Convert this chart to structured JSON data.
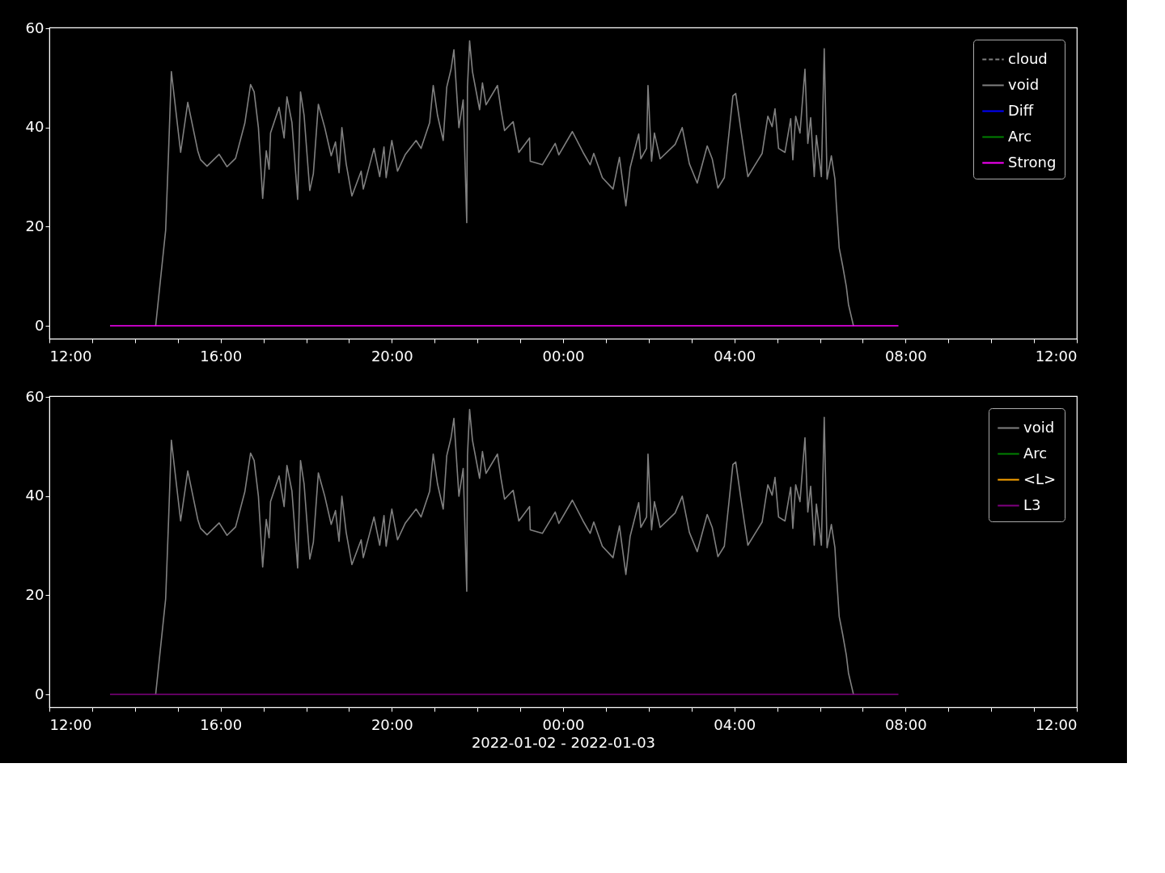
{
  "chart_data": [
    {
      "type": "line",
      "xlim": [
        "2022-01-02T12:00",
        "2022-01-03T12:00"
      ],
      "ylim": [
        -2.6,
        60.2
      ],
      "yticks": [
        0,
        20,
        40,
        60
      ],
      "xticks": [
        {
          "value": "2022-01-02T12:00",
          "label": "12:00"
        },
        {
          "value": "2022-01-02T13:00",
          "label": null
        },
        {
          "value": "2022-01-02T14:00",
          "label": null
        },
        {
          "value": "2022-01-02T15:00",
          "label": null
        },
        {
          "value": "2022-01-02T16:00",
          "label": "16:00"
        },
        {
          "value": "2022-01-02T17:00",
          "label": null
        },
        {
          "value": "2022-01-02T18:00",
          "label": null
        },
        {
          "value": "2022-01-02T19:00",
          "label": null
        },
        {
          "value": "2022-01-02T20:00",
          "label": "20:00"
        },
        {
          "value": "2022-01-02T21:00",
          "label": null
        },
        {
          "value": "2022-01-02T22:00",
          "label": null
        },
        {
          "value": "2022-01-02T23:00",
          "label": null
        },
        {
          "value": "2022-01-03T00:00",
          "label": "00:00"
        },
        {
          "value": "2022-01-03T01:00",
          "label": null
        },
        {
          "value": "2022-01-03T02:00",
          "label": null
        },
        {
          "value": "2022-01-03T03:00",
          "label": null
        },
        {
          "value": "2022-01-03T04:00",
          "label": "04:00"
        },
        {
          "value": "2022-01-03T05:00",
          "label": null
        },
        {
          "value": "2022-01-03T06:00",
          "label": null
        },
        {
          "value": "2022-01-03T07:00",
          "label": null
        },
        {
          "value": "2022-01-03T08:00",
          "label": "08:00"
        },
        {
          "value": "2022-01-03T09:00",
          "label": null
        },
        {
          "value": "2022-01-03T10:00",
          "label": null
        },
        {
          "value": "2022-01-03T11:00",
          "label": null
        },
        {
          "value": "2022-01-03T12:00",
          "label": "12:00"
        }
      ],
      "grid": false,
      "legend": "top right",
      "line_style": "solid",
      "series": [
        {
          "name": "cloud",
          "color": "#808080",
          "line_style": "dashed"
        },
        {
          "name": "void",
          "color": "#808080",
          "x": [
            "2022-01-02T14:29",
            "2022-01-02T14:43",
            "2022-01-02T14:47",
            "2022-01-02T14:51",
            "2022-01-02T15:04",
            "2022-01-02T15:14",
            "2022-01-02T15:28",
            "2022-01-02T15:32",
            "2022-01-02T15:41",
            "2022-01-02T15:58",
            "2022-01-02T16:09",
            "2022-01-02T16:21",
            "2022-01-02T16:34",
            "2022-01-02T16:42",
            "2022-01-02T16:47",
            "2022-01-02T16:53",
            "2022-01-02T16:59",
            "2022-01-02T17:04",
            "2022-01-02T17:08",
            "2022-01-02T17:10",
            "2022-01-02T17:22",
            "2022-01-02T17:29",
            "2022-01-02T17:33",
            "2022-01-02T17:40",
            "2022-01-02T17:48",
            "2022-01-02T17:52",
            "2022-01-02T17:57",
            "2022-01-02T18:05",
            "2022-01-02T18:10",
            "2022-01-02T18:17",
            "2022-01-02T18:26",
            "2022-01-02T18:35",
            "2022-01-02T18:41",
            "2022-01-02T18:46",
            "2022-01-02T18:50",
            "2022-01-02T18:56",
            "2022-01-02T19:04",
            "2022-01-02T19:17",
            "2022-01-02T19:20",
            "2022-01-02T19:35",
            "2022-01-02T19:43",
            "2022-01-02T19:49",
            "2022-01-02T19:52",
            "2022-01-02T20:00",
            "2022-01-02T20:08",
            "2022-01-02T20:19",
            "2022-01-02T20:34",
            "2022-01-02T20:41",
            "2022-01-02T20:53",
            "2022-01-02T20:58",
            "2022-01-02T21:04",
            "2022-01-02T21:12",
            "2022-01-02T21:17",
            "2022-01-02T21:23",
            "2022-01-02T21:27",
            "2022-01-02T21:34",
            "2022-01-02T21:40",
            "2022-01-02T21:45",
            "2022-01-02T21:46",
            "2022-01-02T21:49",
            "2022-01-02T21:53",
            "2022-01-02T22:03",
            "2022-01-02T22:07",
            "2022-01-02T22:12",
            "2022-01-02T22:28",
            "2022-01-02T22:33",
            "2022-01-02T22:38",
            "2022-01-02T22:50",
            "2022-01-02T22:58",
            "2022-01-02T23:13",
            "2022-01-02T23:14",
            "2022-01-02T23:31",
            "2022-01-02T23:49",
            "2022-01-02T23:54",
            "2022-01-03T00:13",
            "2022-01-03T00:28",
            "2022-01-03T00:38",
            "2022-01-03T00:43",
            "2022-01-03T00:55",
            "2022-01-03T01:10",
            "2022-01-03T01:19",
            "2022-01-03T01:28",
            "2022-01-03T01:34",
            "2022-01-03T01:46",
            "2022-01-03T01:49",
            "2022-01-03T01:57",
            "2022-01-03T01:59",
            "2022-01-03T02:04",
            "2022-01-03T02:08",
            "2022-01-03T02:16",
            "2022-01-03T02:37",
            "2022-01-03T02:47",
            "2022-01-03T02:57",
            "2022-01-03T03:08",
            "2022-01-03T03:22",
            "2022-01-03T03:29",
            "2022-01-03T03:37",
            "2022-01-03T03:46",
            "2022-01-03T03:58",
            "2022-01-03T04:02",
            "2022-01-03T04:09",
            "2022-01-03T04:14",
            "2022-01-03T04:19",
            "2022-01-03T04:30",
            "2022-01-03T04:39",
            "2022-01-03T04:47",
            "2022-01-03T04:53",
            "2022-01-03T04:57",
            "2022-01-03T05:02",
            "2022-01-03T05:11",
            "2022-01-03T05:19",
            "2022-01-03T05:22",
            "2022-01-03T05:26",
            "2022-01-03T05:32",
            "2022-01-03T05:39",
            "2022-01-03T05:43",
            "2022-01-03T05:47",
            "2022-01-03T05:52",
            "2022-01-03T05:55",
            "2022-01-03T06:02",
            "2022-01-03T06:06",
            "2022-01-03T06:10",
            "2022-01-03T06:16",
            "2022-01-03T06:21",
            "2022-01-03T06:23",
            "2022-01-03T06:27",
            "2022-01-03T06:32",
            "2022-01-03T06:37",
            "2022-01-03T06:40",
            "2022-01-03T06:47"
          ],
          "values": [
            0,
            19.3,
            34.8,
            51.3,
            35.0,
            45.1,
            35.3,
            33.5,
            32.2,
            34.6,
            32.1,
            33.8,
            40.9,
            48.7,
            47.2,
            40.0,
            25.7,
            35.3,
            31.6,
            38.9,
            44.1,
            37.9,
            46.2,
            41.0,
            25.5,
            47.2,
            42.5,
            27.3,
            30.7,
            44.7,
            40.0,
            34.3,
            37.1,
            30.9,
            40.0,
            32.7,
            26.2,
            31.2,
            27.6,
            35.8,
            30.1,
            36.1,
            29.9,
            37.4,
            31.2,
            34.6,
            37.4,
            35.8,
            41.0,
            48.5,
            42.5,
            37.4,
            48.2,
            51.8,
            55.7,
            40.0,
            45.6,
            20.8,
            48.2,
            57.5,
            51.3,
            43.6,
            49.0,
            44.6,
            48.5,
            43.6,
            39.4,
            41.2,
            35.0,
            37.9,
            33.2,
            32.5,
            36.8,
            34.5,
            39.2,
            35.0,
            32.5,
            34.8,
            29.9,
            27.6,
            34.0,
            24.2,
            31.9,
            38.7,
            33.7,
            35.8,
            48.5,
            33.2,
            38.9,
            33.7,
            36.6,
            40.0,
            32.7,
            28.8,
            36.3,
            33.7,
            27.8,
            29.9,
            46.4,
            46.9,
            39.7,
            34.8,
            30.1,
            32.7,
            34.8,
            42.3,
            40.2,
            43.8,
            35.8,
            35.0,
            41.8,
            33.5,
            42.3,
            38.9,
            51.8,
            36.8,
            42.0,
            30.1,
            38.4,
            30.1,
            55.9,
            29.6,
            34.3,
            29.6,
            24.4,
            15.7,
            12.0,
            7.9,
            4.3,
            0
          ]
        },
        {
          "name": "Diff",
          "color": "#0000ff"
        },
        {
          "name": "Arc",
          "color": "#008000"
        },
        {
          "name": "Strong",
          "color": "#ff00ff",
          "x": [
            "2022-01-02T13:25",
            "2022-01-03T07:50"
          ],
          "values": [
            0,
            0
          ]
        }
      ]
    },
    {
      "type": "line",
      "xlim": [
        "2022-01-02T12:00",
        "2022-01-03T12:00"
      ],
      "ylim": [
        -2.6,
        60.2
      ],
      "yticks": [
        0,
        20,
        40,
        60
      ],
      "xlabel": "2022-01-02 - 2022-01-03",
      "xticks": [
        {
          "value": "2022-01-02T12:00",
          "label": "12:00"
        },
        {
          "value": "2022-01-02T13:00",
          "label": null
        },
        {
          "value": "2022-01-02T14:00",
          "label": null
        },
        {
          "value": "2022-01-02T15:00",
          "label": null
        },
        {
          "value": "2022-01-02T16:00",
          "label": "16:00"
        },
        {
          "value": "2022-01-02T17:00",
          "label": null
        },
        {
          "value": "2022-01-02T18:00",
          "label": null
        },
        {
          "value": "2022-01-02T19:00",
          "label": null
        },
        {
          "value": "2022-01-02T20:00",
          "label": "20:00"
        },
        {
          "value": "2022-01-02T21:00",
          "label": null
        },
        {
          "value": "2022-01-02T22:00",
          "label": null
        },
        {
          "value": "2022-01-02T23:00",
          "label": null
        },
        {
          "value": "2022-01-03T00:00",
          "label": "00:00"
        },
        {
          "value": "2022-01-03T01:00",
          "label": null
        },
        {
          "value": "2022-01-03T02:00",
          "label": null
        },
        {
          "value": "2022-01-03T03:00",
          "label": null
        },
        {
          "value": "2022-01-03T04:00",
          "label": "04:00"
        },
        {
          "value": "2022-01-03T05:00",
          "label": null
        },
        {
          "value": "2022-01-03T06:00",
          "label": null
        },
        {
          "value": "2022-01-03T07:00",
          "label": null
        },
        {
          "value": "2022-01-03T08:00",
          "label": "08:00"
        },
        {
          "value": "2022-01-03T09:00",
          "label": null
        },
        {
          "value": "2022-01-03T10:00",
          "label": null
        },
        {
          "value": "2022-01-03T11:00",
          "label": null
        },
        {
          "value": "2022-01-03T12:00",
          "label": "12:00"
        }
      ],
      "grid": false,
      "legend": "top right",
      "line_style": "solid",
      "series": [
        {
          "name": "void",
          "color": "#808080",
          "x": [
            "2022-01-02T14:29",
            "2022-01-02T14:43",
            "2022-01-02T14:47",
            "2022-01-02T14:51",
            "2022-01-02T15:04",
            "2022-01-02T15:14",
            "2022-01-02T15:28",
            "2022-01-02T15:32",
            "2022-01-02T15:41",
            "2022-01-02T15:58",
            "2022-01-02T16:09",
            "2022-01-02T16:21",
            "2022-01-02T16:34",
            "2022-01-02T16:42",
            "2022-01-02T16:47",
            "2022-01-02T16:53",
            "2022-01-02T16:59",
            "2022-01-02T17:04",
            "2022-01-02T17:08",
            "2022-01-02T17:10",
            "2022-01-02T17:22",
            "2022-01-02T17:29",
            "2022-01-02T17:33",
            "2022-01-02T17:40",
            "2022-01-02T17:48",
            "2022-01-02T17:52",
            "2022-01-02T17:57",
            "2022-01-02T18:05",
            "2022-01-02T18:10",
            "2022-01-02T18:17",
            "2022-01-02T18:26",
            "2022-01-02T18:35",
            "2022-01-02T18:41",
            "2022-01-02T18:46",
            "2022-01-02T18:50",
            "2022-01-02T18:56",
            "2022-01-02T19:04",
            "2022-01-02T19:17",
            "2022-01-02T19:20",
            "2022-01-02T19:35",
            "2022-01-02T19:43",
            "2022-01-02T19:49",
            "2022-01-02T19:52",
            "2022-01-02T20:00",
            "2022-01-02T20:08",
            "2022-01-02T20:19",
            "2022-01-02T20:34",
            "2022-01-02T20:41",
            "2022-01-02T20:53",
            "2022-01-02T20:58",
            "2022-01-02T21:04",
            "2022-01-02T21:12",
            "2022-01-02T21:17",
            "2022-01-02T21:23",
            "2022-01-02T21:27",
            "2022-01-02T21:34",
            "2022-01-02T21:40",
            "2022-01-02T21:45",
            "2022-01-02T21:46",
            "2022-01-02T21:49",
            "2022-01-02T21:53",
            "2022-01-02T22:03",
            "2022-01-02T22:07",
            "2022-01-02T22:12",
            "2022-01-02T22:28",
            "2022-01-02T22:33",
            "2022-01-02T22:38",
            "2022-01-02T22:50",
            "2022-01-02T22:58",
            "2022-01-02T23:13",
            "2022-01-02T23:14",
            "2022-01-02T23:31",
            "2022-01-02T23:49",
            "2022-01-02T23:54",
            "2022-01-03T00:13",
            "2022-01-03T00:28",
            "2022-01-03T00:38",
            "2022-01-03T00:43",
            "2022-01-03T00:55",
            "2022-01-03T01:10",
            "2022-01-03T01:19",
            "2022-01-03T01:28",
            "2022-01-03T01:34",
            "2022-01-03T01:46",
            "2022-01-03T01:49",
            "2022-01-03T01:57",
            "2022-01-03T01:59",
            "2022-01-03T02:04",
            "2022-01-03T02:08",
            "2022-01-03T02:16",
            "2022-01-03T02:37",
            "2022-01-03T02:47",
            "2022-01-03T02:57",
            "2022-01-03T03:08",
            "2022-01-03T03:22",
            "2022-01-03T03:29",
            "2022-01-03T03:37",
            "2022-01-03T03:46",
            "2022-01-03T03:58",
            "2022-01-03T04:02",
            "2022-01-03T04:09",
            "2022-01-03T04:14",
            "2022-01-03T04:19",
            "2022-01-03T04:30",
            "2022-01-03T04:39",
            "2022-01-03T04:47",
            "2022-01-03T04:53",
            "2022-01-03T04:57",
            "2022-01-03T05:02",
            "2022-01-03T05:11",
            "2022-01-03T05:19",
            "2022-01-03T05:22",
            "2022-01-03T05:26",
            "2022-01-03T05:32",
            "2022-01-03T05:39",
            "2022-01-03T05:43",
            "2022-01-03T05:47",
            "2022-01-03T05:52",
            "2022-01-03T05:55",
            "2022-01-03T06:02",
            "2022-01-03T06:06",
            "2022-01-03T06:10",
            "2022-01-03T06:16",
            "2022-01-03T06:21",
            "2022-01-03T06:23",
            "2022-01-03T06:27",
            "2022-01-03T06:32",
            "2022-01-03T06:37",
            "2022-01-03T06:40",
            "2022-01-03T06:47"
          ],
          "values": [
            0,
            19.3,
            34.8,
            51.3,
            35.0,
            45.1,
            35.3,
            33.5,
            32.2,
            34.6,
            32.1,
            33.8,
            40.9,
            48.7,
            47.2,
            40.0,
            25.7,
            35.3,
            31.6,
            38.9,
            44.1,
            37.9,
            46.2,
            41.0,
            25.5,
            47.2,
            42.5,
            27.3,
            30.7,
            44.7,
            40.0,
            34.3,
            37.1,
            30.9,
            40.0,
            32.7,
            26.2,
            31.2,
            27.6,
            35.8,
            30.1,
            36.1,
            29.9,
            37.4,
            31.2,
            34.6,
            37.4,
            35.8,
            41.0,
            48.5,
            42.5,
            37.4,
            48.2,
            51.8,
            55.7,
            40.0,
            45.6,
            20.8,
            48.2,
            57.5,
            51.3,
            43.6,
            49.0,
            44.6,
            48.5,
            43.6,
            39.4,
            41.2,
            35.0,
            37.9,
            33.2,
            32.5,
            36.8,
            34.5,
            39.2,
            35.0,
            32.5,
            34.8,
            29.9,
            27.6,
            34.0,
            24.2,
            31.9,
            38.7,
            33.7,
            35.8,
            48.5,
            33.2,
            38.9,
            33.7,
            36.6,
            40.0,
            32.7,
            28.8,
            36.3,
            33.7,
            27.8,
            29.9,
            46.4,
            46.9,
            39.7,
            34.8,
            30.1,
            32.7,
            34.8,
            42.3,
            40.2,
            43.8,
            35.8,
            35.0,
            41.8,
            33.5,
            42.3,
            38.9,
            51.8,
            36.8,
            42.0,
            30.1,
            38.4,
            30.1,
            55.9,
            29.6,
            34.3,
            29.6,
            24.4,
            15.7,
            12.0,
            7.9,
            4.3,
            0
          ]
        },
        {
          "name": "Arc",
          "color": "#008000"
        },
        {
          "name": "<L>",
          "color": "#ffa500"
        },
        {
          "name": "L3",
          "color": "#800080",
          "x": [
            "2022-01-02T13:25",
            "2022-01-03T07:50"
          ],
          "values": [
            0,
            0
          ]
        }
      ]
    }
  ]
}
